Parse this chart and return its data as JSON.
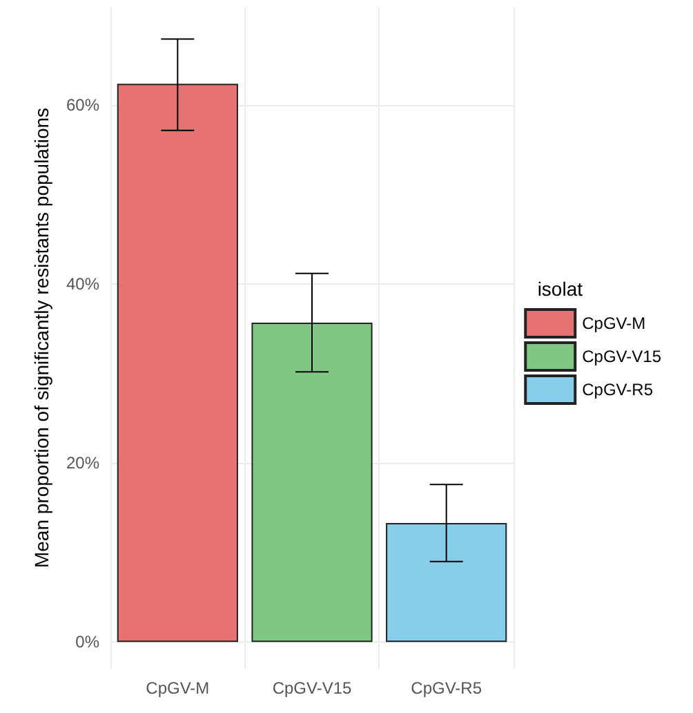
{
  "chart_data": {
    "type": "bar",
    "ylabel": "Mean proportion of significantly resistants populations",
    "legend_title": "isolat",
    "categories": [
      "CpGV-M",
      "CpGV-V15",
      "CpGV-R5"
    ],
    "series": [
      {
        "name": "CpGV-M",
        "color": "#e57373",
        "values": [
          62.4,
          null,
          null
        ],
        "errors": [
          [
            57.2,
            67.4
          ],
          null,
          null
        ]
      },
      {
        "name": "CpGV-V15",
        "color": "#81c784",
        "values": [
          null,
          35.7,
          null
        ],
        "errors": [
          null,
          [
            30.2,
            41.2
          ],
          null
        ]
      },
      {
        "name": "CpGV-R5",
        "color": "#87ceeb",
        "values": [
          null,
          null,
          13.3
        ],
        "errors": [
          null,
          null,
          [
            9.0,
            17.6
          ]
        ]
      }
    ],
    "ylim": [
      -3,
      71
    ],
    "yticks": [
      {
        "value": 0,
        "label": "0%"
      },
      {
        "value": 20,
        "label": "20%"
      },
      {
        "value": 40,
        "label": "40%"
      },
      {
        "value": 60,
        "label": "60%"
      }
    ],
    "grid": true,
    "legend": "right"
  }
}
